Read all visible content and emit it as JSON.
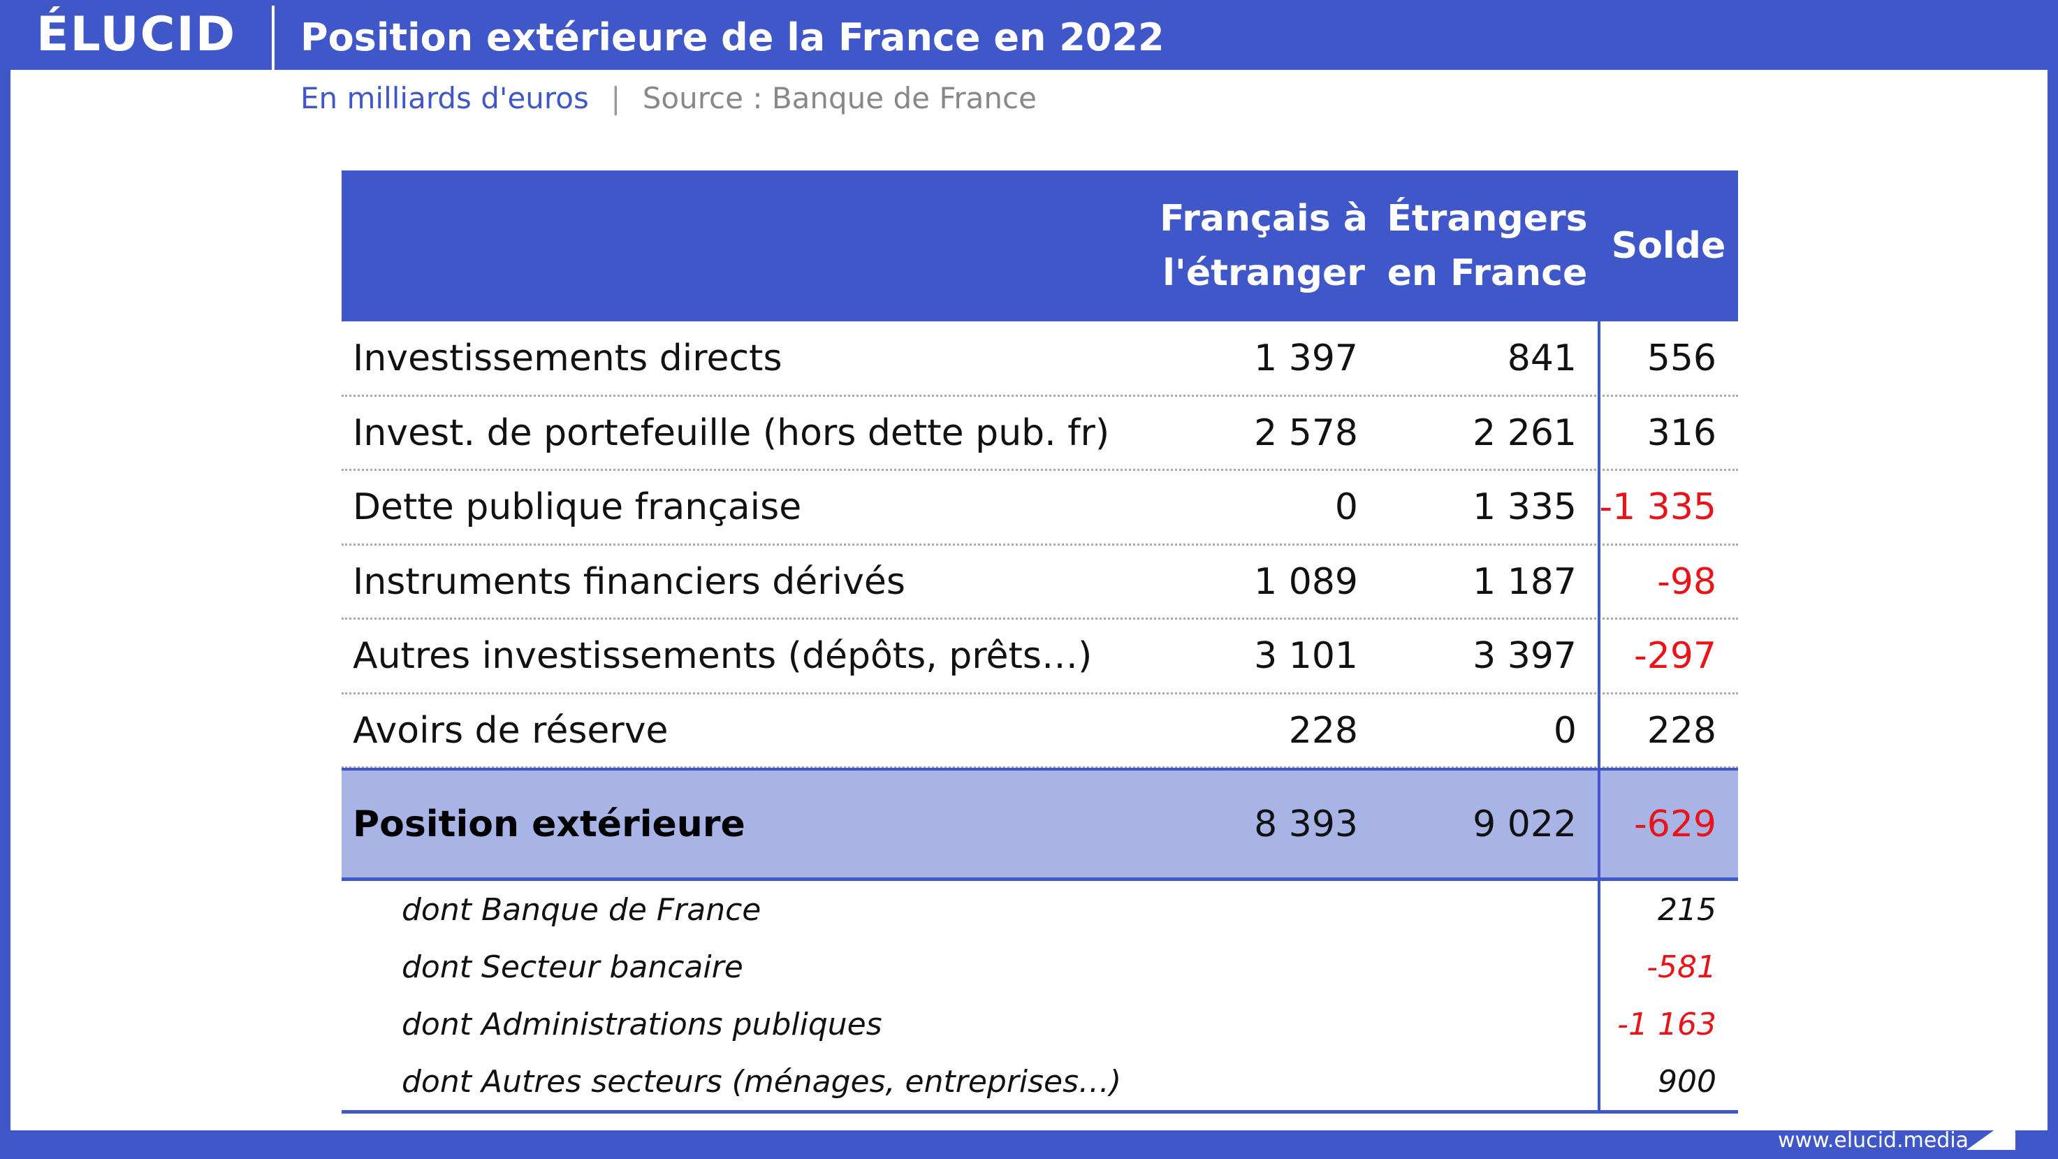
{
  "header": {
    "logo": "ÉLUCID",
    "title": "Position extérieure de la France en 2022"
  },
  "subtitle": {
    "units": "En milliards d'euros",
    "separator": "|",
    "source": "Source : Banque de France"
  },
  "table": {
    "columns": [
      "Français à l'étranger",
      "Étrangers en France",
      "Solde"
    ],
    "rows": [
      [
        "Investissements directs",
        "1 397",
        "841",
        "556"
      ],
      [
        "Invest. de portefeuille (hors dette pub. fr)",
        "2 578",
        "2 261",
        "316"
      ],
      [
        "Dette publique française",
        "0",
        "1 335",
        "-1 335"
      ],
      [
        "Instruments financiers dérivés",
        "1 089",
        "1 187",
        "-98"
      ],
      [
        "Autres investissements (dépôts, prêts…)",
        "3 101",
        "3 397",
        "-297"
      ],
      [
        "Avoirs de réserve",
        "228",
        "0",
        "228"
      ]
    ],
    "total": [
      "Position extérieure",
      "8 393",
      "9 022",
      "-629"
    ],
    "details": [
      [
        "dont Banque de France",
        "215"
      ],
      [
        "dont Secteur bancaire",
        "-581"
      ],
      [
        "dont Administrations publiques",
        "-1 163"
      ],
      [
        "dont Autres secteurs (ménages, entreprises…)",
        "900"
      ]
    ]
  },
  "footer": {
    "url": "www.elucid.media"
  }
}
